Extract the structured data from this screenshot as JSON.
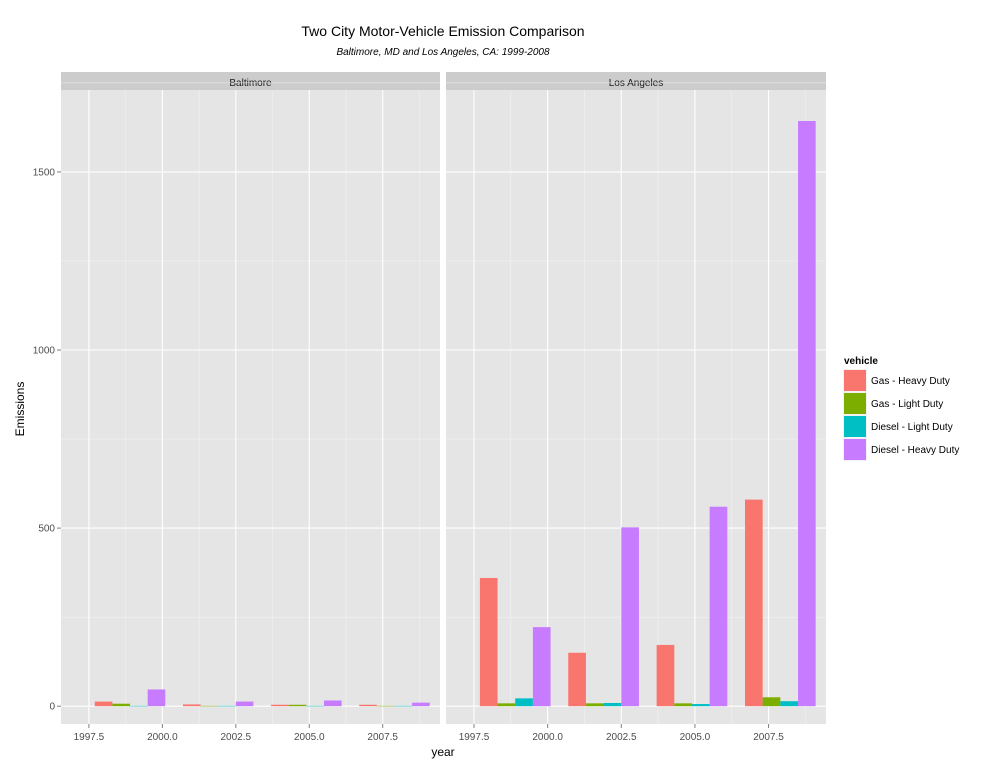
{
  "chart_data": {
    "type": "bar",
    "title": "Two City Motor-Vehicle Emission Comparison",
    "subtitle": "Baltimore, MD and Los Angeles, CA: 1999-2008",
    "xlabel": "year",
    "ylabel": "Emissions",
    "xlim": [
      1996.55,
      2009.45
    ],
    "ylim": [
      -50,
      1730
    ],
    "x_ticks": [
      1997.5,
      2000,
      2002.5,
      2005,
      2007.5
    ],
    "x_tick_labels": [
      "1997.5",
      "2000.0",
      "2002.5",
      "2005.0",
      "2007.5"
    ],
    "y_ticks": [
      0,
      500,
      1000,
      1500
    ],
    "y_tick_labels": [
      "0",
      "500",
      "1000",
      "1500"
    ],
    "grid": true,
    "legend": {
      "title": "vehicle",
      "placement": "right",
      "entries": [
        {
          "name": "Gas - Heavy Duty",
          "color": "#F8766D"
        },
        {
          "name": "Gas - Light Duty",
          "color": "#7CAE00"
        },
        {
          "name": "Diesel - Light Duty",
          "color": "#00BFC4"
        },
        {
          "name": "Diesel - Heavy Duty",
          "color": "#C77CFF"
        }
      ]
    },
    "panels": [
      {
        "name": "Baltimore",
        "series": [
          {
            "name": "Gas - Heavy Duty",
            "x": [
              1998,
              2001,
              2004,
              2007
            ],
            "values": [
              13,
              5,
              4,
              4
            ]
          },
          {
            "name": "Gas - Light Duty",
            "x": [
              1998.6,
              2001.6,
              2004.6,
              2007.6
            ],
            "values": [
              7,
              1,
              4,
              1
            ]
          },
          {
            "name": "Diesel - Light Duty",
            "x": [
              1999.2,
              2002.2,
              2005.2,
              2008.2
            ],
            "values": [
              1,
              1,
              1,
              1
            ]
          },
          {
            "name": "Diesel - Heavy Duty",
            "x": [
              1999.8,
              2002.8,
              2005.8,
              2008.8
            ],
            "values": [
              47,
              13,
              16,
              10
            ]
          }
        ]
      },
      {
        "name": "Los Angeles",
        "series": [
          {
            "name": "Gas - Heavy Duty",
            "x": [
              1998,
              2001,
              2004,
              2007
            ],
            "values": [
              360,
              150,
              172,
              580
            ]
          },
          {
            "name": "Gas - Light Duty",
            "x": [
              1998.6,
              2001.6,
              2004.6,
              2007.6
            ],
            "values": [
              8,
              8,
              8,
              25
            ]
          },
          {
            "name": "Diesel - Light Duty",
            "x": [
              1999.2,
              2002.2,
              2005.2,
              2008.2
            ],
            "values": [
              22,
              9,
              6,
              14
            ]
          },
          {
            "name": "Diesel - Heavy Duty",
            "x": [
              1999.8,
              2002.8,
              2005.8,
              2008.8
            ],
            "values": [
              222,
              502,
              560,
              1643
            ]
          }
        ]
      }
    ]
  }
}
